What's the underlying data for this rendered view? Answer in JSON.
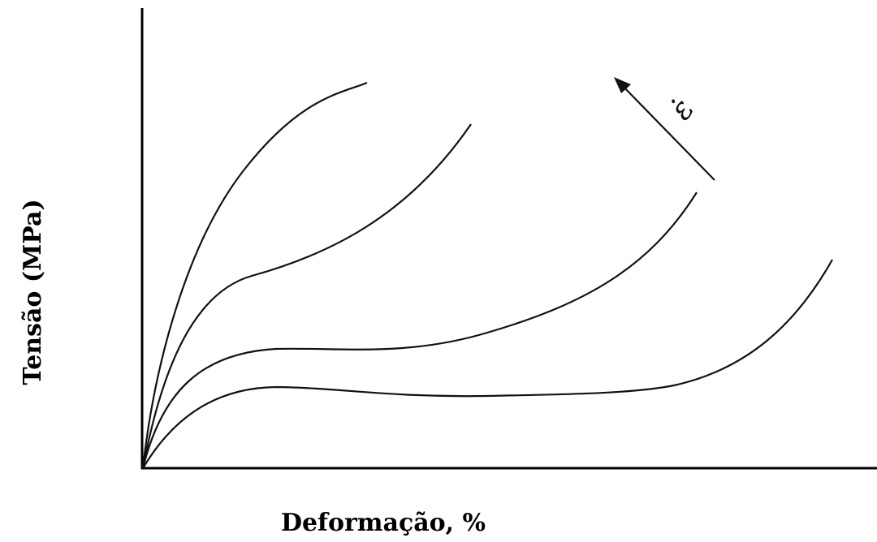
{
  "axes": {
    "y_label": "Tensão (MPa)",
    "x_label": "Deformação, %"
  },
  "annotation": {
    "text": "ε̇"
  }
}
